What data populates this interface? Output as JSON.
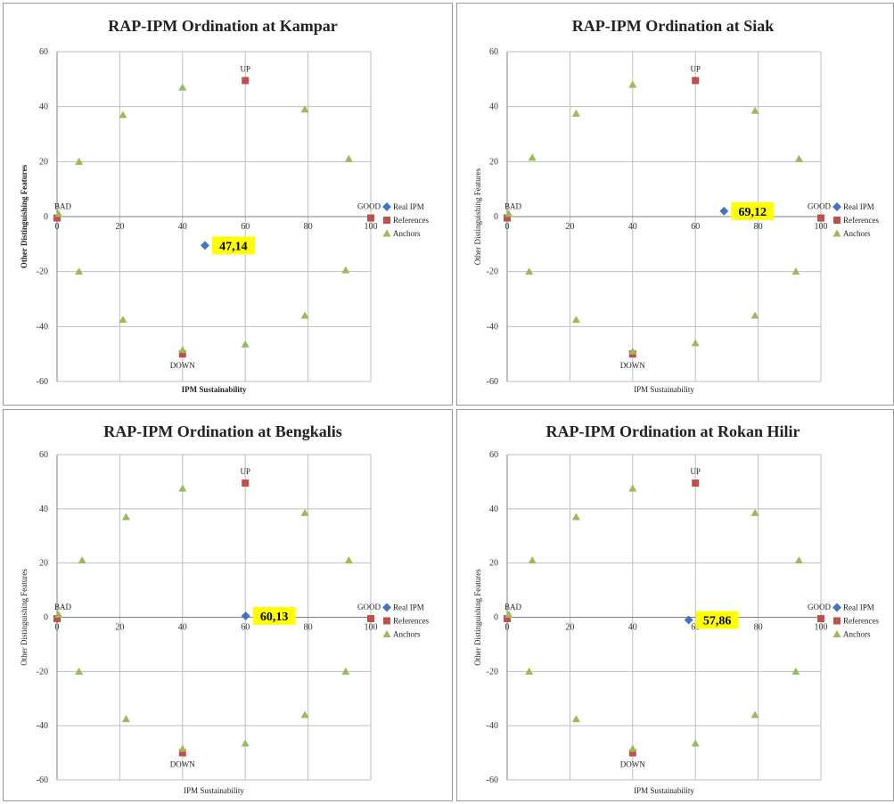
{
  "colors": {
    "real_ipm": "#4472c4",
    "references": "#c0504d",
    "anchors": "#9bbb59",
    "callout_bg": "#ffff00",
    "grid": "#bfbfbf"
  },
  "chart_data": [
    {
      "type": "scatter",
      "title": "RAP-IPM Ordination at Kampar",
      "xlabel": "IPM Sustainability",
      "ylabel": "Other Distinguishing Features",
      "xlim": [
        0,
        100
      ],
      "ylim": [
        -60,
        60
      ],
      "xticks": [
        "0",
        "20",
        "40",
        "60",
        "80",
        "100"
      ],
      "yticks": [
        "60",
        "40",
        "20",
        "0",
        "-20",
        "-40",
        "-60"
      ],
      "grid": true,
      "legend_position": "right",
      "series": [
        {
          "name": "Real IPM",
          "points": [
            [
              47.14,
              -10.5
            ]
          ]
        },
        {
          "name": "References",
          "points": [
            [
              0,
              -0.5
            ],
            [
              100,
              -0.5
            ],
            [
              60,
              49.5
            ],
            [
              40,
              -50
            ]
          ]
        },
        {
          "name": "Anchors",
          "points": [
            [
              0.5,
              1
            ],
            [
              7,
              20
            ],
            [
              21,
              37
            ],
            [
              40,
              47
            ],
            [
              79,
              39
            ],
            [
              93,
              21
            ],
            [
              7,
              -20
            ],
            [
              21,
              -37.5
            ],
            [
              40,
              -48.5
            ],
            [
              60,
              -46.5
            ],
            [
              79,
              -36
            ],
            [
              92,
              -19.5
            ]
          ]
        }
      ],
      "point_labels": [
        {
          "text": "UP",
          "x": 60,
          "y": 49.5
        },
        {
          "text": "DOWN",
          "x": 40,
          "y": -50
        },
        {
          "text": "BAD",
          "x": 0,
          "y": -0.5
        },
        {
          "text": "GOOD",
          "x": 100,
          "y": -0.5
        }
      ],
      "callout": {
        "text": "47,14",
        "x": 47.14,
        "y": -10.5
      }
    },
    {
      "type": "scatter",
      "title": "RAP-IPM Ordination at Siak",
      "xlabel": "IPM Sustainability",
      "ylabel": "Other Distinguishing Features",
      "xlim": [
        0,
        100
      ],
      "ylim": [
        -60,
        60
      ],
      "xticks": [
        "0",
        "20",
        "40",
        "60",
        "80",
        "100"
      ],
      "yticks": [
        "60",
        "40",
        "20",
        "0",
        "-20",
        "-40",
        "-60"
      ],
      "grid": true,
      "legend_position": "right",
      "series": [
        {
          "name": "Real IPM",
          "points": [
            [
              69.12,
              2
            ]
          ]
        },
        {
          "name": "References",
          "points": [
            [
              0,
              -0.5
            ],
            [
              100,
              -0.5
            ],
            [
              60,
              49.5
            ],
            [
              40,
              -50
            ]
          ]
        },
        {
          "name": "Anchors",
          "points": [
            [
              0.5,
              1
            ],
            [
              8,
              21.5
            ],
            [
              22,
              37.5
            ],
            [
              40,
              48
            ],
            [
              79,
              38.5
            ],
            [
              93,
              21
            ],
            [
              7,
              -20
            ],
            [
              22,
              -37.5
            ],
            [
              40,
              -49
            ],
            [
              60,
              -46
            ],
            [
              79,
              -36
            ],
            [
              92,
              -20
            ]
          ]
        }
      ],
      "point_labels": [
        {
          "text": "UP",
          "x": 60,
          "y": 49.5
        },
        {
          "text": "DOWN",
          "x": 40,
          "y": -50
        },
        {
          "text": "BAD",
          "x": 0,
          "y": -0.5
        },
        {
          "text": "GOOD",
          "x": 100,
          "y": -0.5
        }
      ],
      "callout": {
        "text": "69,12",
        "x": 69.12,
        "y": 2
      }
    },
    {
      "type": "scatter",
      "title": "RAP-IPM Ordination at Bengkalis",
      "xlabel": "IPM Sustainability",
      "ylabel": "Other Distinguishing Features",
      "xlim": [
        0,
        100
      ],
      "ylim": [
        -60,
        60
      ],
      "xticks": [
        "0",
        "20",
        "40",
        "60",
        "80",
        "100"
      ],
      "yticks": [
        "60",
        "40",
        "20",
        "0",
        "-20",
        "-40",
        "-60"
      ],
      "grid": true,
      "legend_position": "right",
      "series": [
        {
          "name": "Real IPM",
          "points": [
            [
              60.13,
              0.5
            ]
          ]
        },
        {
          "name": "References",
          "points": [
            [
              0,
              -0.5
            ],
            [
              100,
              -0.5
            ],
            [
              60,
              49.5
            ],
            [
              40,
              -50
            ]
          ]
        },
        {
          "name": "Anchors",
          "points": [
            [
              0.5,
              1
            ],
            [
              8,
              21
            ],
            [
              22,
              37
            ],
            [
              40,
              47.5
            ],
            [
              79,
              38.5
            ],
            [
              93,
              21
            ],
            [
              7,
              -20
            ],
            [
              22,
              -37.5
            ],
            [
              40,
              -48.5
            ],
            [
              60,
              -46.5
            ],
            [
              79,
              -36
            ],
            [
              92,
              -20
            ]
          ]
        }
      ],
      "point_labels": [
        {
          "text": "UP",
          "x": 60,
          "y": 49.5
        },
        {
          "text": "DOWN",
          "x": 40,
          "y": -50
        },
        {
          "text": "BAD",
          "x": 0,
          "y": -0.5
        },
        {
          "text": "GOOD",
          "x": 100,
          "y": -0.5
        }
      ],
      "callout": {
        "text": "60,13",
        "x": 60.13,
        "y": 0.5
      }
    },
    {
      "type": "scatter",
      "title": "RAP-IPM Ordination at Rokan Hilir",
      "xlabel": "IPM Sustainability",
      "ylabel": "Other Distinguishing Features",
      "xlim": [
        0,
        100
      ],
      "ylim": [
        -60,
        60
      ],
      "xticks": [
        "0",
        "20",
        "40",
        "60",
        "80",
        "100"
      ],
      "yticks": [
        "60",
        "40",
        "20",
        "0",
        "-20",
        "-40",
        "-60"
      ],
      "grid": true,
      "legend_position": "right",
      "series": [
        {
          "name": "Real IPM",
          "points": [
            [
              57.86,
              -1
            ]
          ]
        },
        {
          "name": "References",
          "points": [
            [
              0,
              -0.5
            ],
            [
              100,
              -0.5
            ],
            [
              60,
              49.5
            ],
            [
              40,
              -50
            ]
          ]
        },
        {
          "name": "Anchors",
          "points": [
            [
              0.5,
              1
            ],
            [
              8,
              21
            ],
            [
              22,
              37
            ],
            [
              40,
              47.5
            ],
            [
              79,
              38.5
            ],
            [
              93,
              21
            ],
            [
              7,
              -20
            ],
            [
              22,
              -37.5
            ],
            [
              40,
              -48.5
            ],
            [
              60,
              -46.5
            ],
            [
              79,
              -36
            ],
            [
              92,
              -20
            ]
          ]
        }
      ],
      "point_labels": [
        {
          "text": "UP",
          "x": 60,
          "y": 49.5
        },
        {
          "text": "DOWN",
          "x": 40,
          "y": -50
        },
        {
          "text": "BAD",
          "x": 0,
          "y": -0.5
        },
        {
          "text": "GOOD",
          "x": 100,
          "y": -0.5
        }
      ],
      "callout": {
        "text": "57,86",
        "x": 57.86,
        "y": -1
      }
    }
  ]
}
